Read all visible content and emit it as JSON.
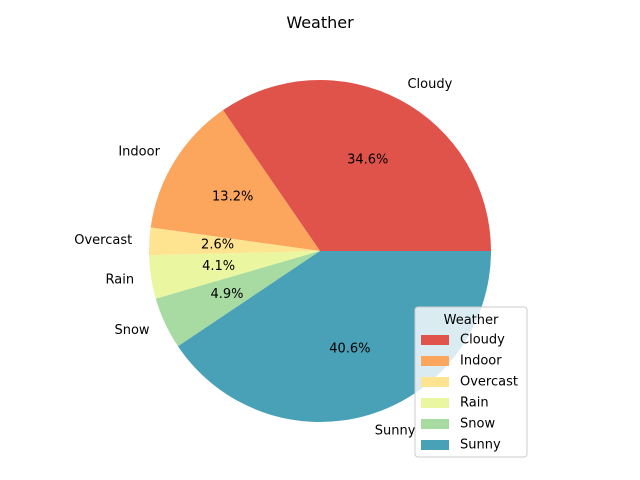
{
  "chart_data": {
    "type": "pie",
    "title": "Weather",
    "categories": [
      "Cloudy",
      "Indoor",
      "Overcast",
      "Rain",
      "Snow",
      "Sunny"
    ],
    "values": [
      34.6,
      13.2,
      2.6,
      4.1,
      4.9,
      40.6
    ],
    "percent_labels": [
      "34.6%",
      "13.2%",
      "2.6%",
      "4.1%",
      "4.9%",
      "40.6%"
    ],
    "colors": [
      "#e0534a",
      "#fca55d",
      "#fee491",
      "#ebf7a0",
      "#a8dba2",
      "#48a1b7"
    ],
    "start_angle_deg": 0,
    "direction": "counterclockwise",
    "legend": {
      "title": "Weather",
      "location": "lower-right"
    }
  }
}
